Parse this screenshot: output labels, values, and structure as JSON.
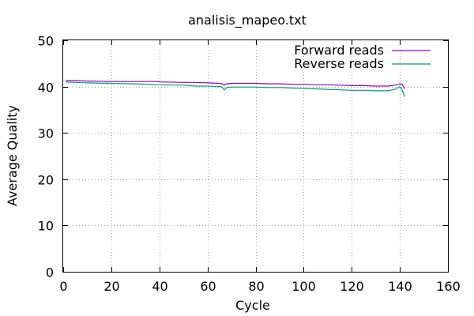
{
  "chart_data": {
    "type": "line",
    "title": "analisis_mapeo.txt",
    "xlabel": "Cycle",
    "ylabel": "Average Quality",
    "xlim": [
      0,
      160
    ],
    "ylim": [
      0,
      50
    ],
    "xticks": [
      0,
      20,
      40,
      60,
      80,
      100,
      120,
      140,
      160
    ],
    "yticks": [
      0,
      10,
      20,
      30,
      40,
      50
    ],
    "grid": true,
    "legend_position": "top-right",
    "series": [
      {
        "name": "Forward reads",
        "color": "#9400d3",
        "x": [
          1,
          5,
          10,
          20,
          30,
          39,
          40,
          50,
          55,
          60,
          65,
          66,
          67,
          68,
          70,
          80,
          85,
          90,
          95,
          100,
          105,
          110,
          115,
          120,
          125,
          130,
          135,
          138,
          140,
          141,
          142
        ],
        "y": [
          41.3,
          41.3,
          41.2,
          41.1,
          41.1,
          41.1,
          41.0,
          40.9,
          40.9,
          40.8,
          40.7,
          40.6,
          40.3,
          40.6,
          40.7,
          40.7,
          40.6,
          40.6,
          40.5,
          40.5,
          40.4,
          40.4,
          40.3,
          40.2,
          40.2,
          40.1,
          40.1,
          40.3,
          40.6,
          40.5,
          39.5
        ]
      },
      {
        "name": "Reverse reads",
        "color": "#009e73",
        "x": [
          1,
          5,
          10,
          20,
          30,
          40,
          50,
          55,
          60,
          65,
          66,
          67,
          68,
          70,
          80,
          85,
          90,
          95,
          100,
          105,
          110,
          115,
          120,
          125,
          130,
          135,
          138,
          140,
          141,
          142
        ],
        "y": [
          41.0,
          40.9,
          40.8,
          40.7,
          40.6,
          40.4,
          40.3,
          40.1,
          40.1,
          40.0,
          39.9,
          39.3,
          39.8,
          39.9,
          39.9,
          39.8,
          39.8,
          39.7,
          39.6,
          39.5,
          39.4,
          39.3,
          39.2,
          39.2,
          39.1,
          39.1,
          39.4,
          40.0,
          39.2,
          37.8
        ]
      }
    ]
  }
}
